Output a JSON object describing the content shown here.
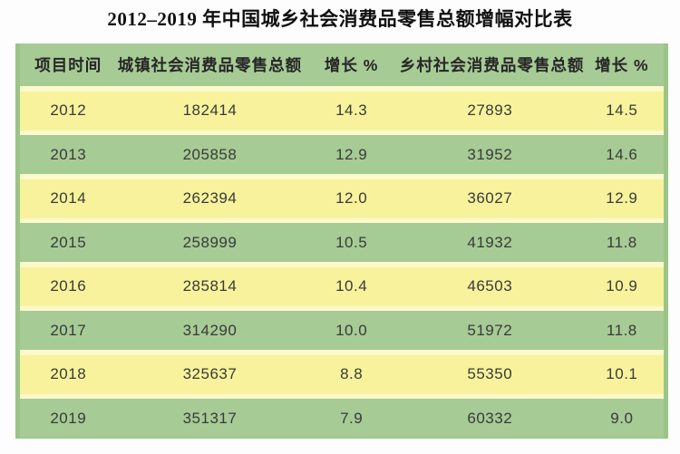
{
  "title": "2012–2019 年中国城乡社会消费品零售总额增幅对比表",
  "table": {
    "columns": [
      "项目时间",
      "城镇社会消费品零售总额",
      "增长 %",
      "乡村社会消费品零售总额",
      "增长 %"
    ],
    "rows": [
      [
        "2012",
        "182414",
        "14.3",
        "27893",
        "14.5"
      ],
      [
        "2013",
        "205858",
        "12.9",
        "31952",
        "14.6"
      ],
      [
        "2014",
        "262394",
        "12.0",
        "36027",
        "12.9"
      ],
      [
        "2015",
        "258999",
        "10.5",
        "41932",
        "11.8"
      ],
      [
        "2016",
        "285814",
        "10.4",
        "46503",
        "10.9"
      ],
      [
        "2017",
        "314290",
        "10.0",
        "51972",
        "11.8"
      ],
      [
        "2018",
        "325637",
        "8.8",
        "55350",
        "10.1"
      ],
      [
        "2019",
        "351317",
        "7.9",
        "60332",
        "9.0"
      ]
    ],
    "colors": {
      "row_yellow": "#f8f29c",
      "row_green": "#a6cb95",
      "separator": "#fcf9cb",
      "table_edge": "#9bc487",
      "header_text": "#262626",
      "cell_text": "#3a3a3a"
    }
  },
  "chart_data": {
    "type": "table",
    "title": "2012–2019 年中国城乡社会消费品零售总额增幅对比表",
    "columns": [
      "项目时间",
      "城镇社会消费品零售总额",
      "增长 %",
      "乡村社会消费品零售总额",
      "增长 %"
    ],
    "rows": [
      [
        2012,
        182414,
        14.3,
        27893,
        14.5
      ],
      [
        2013,
        205858,
        12.9,
        31952,
        14.6
      ],
      [
        2014,
        262394,
        12.0,
        36027,
        12.9
      ],
      [
        2015,
        258999,
        10.5,
        41932,
        11.8
      ],
      [
        2016,
        285814,
        10.4,
        46503,
        10.9
      ],
      [
        2017,
        314290,
        10.0,
        51972,
        11.8
      ],
      [
        2018,
        325637,
        8.8,
        55350,
        10.1
      ],
      [
        2019,
        351317,
        7.9,
        60332,
        9.0
      ]
    ]
  }
}
